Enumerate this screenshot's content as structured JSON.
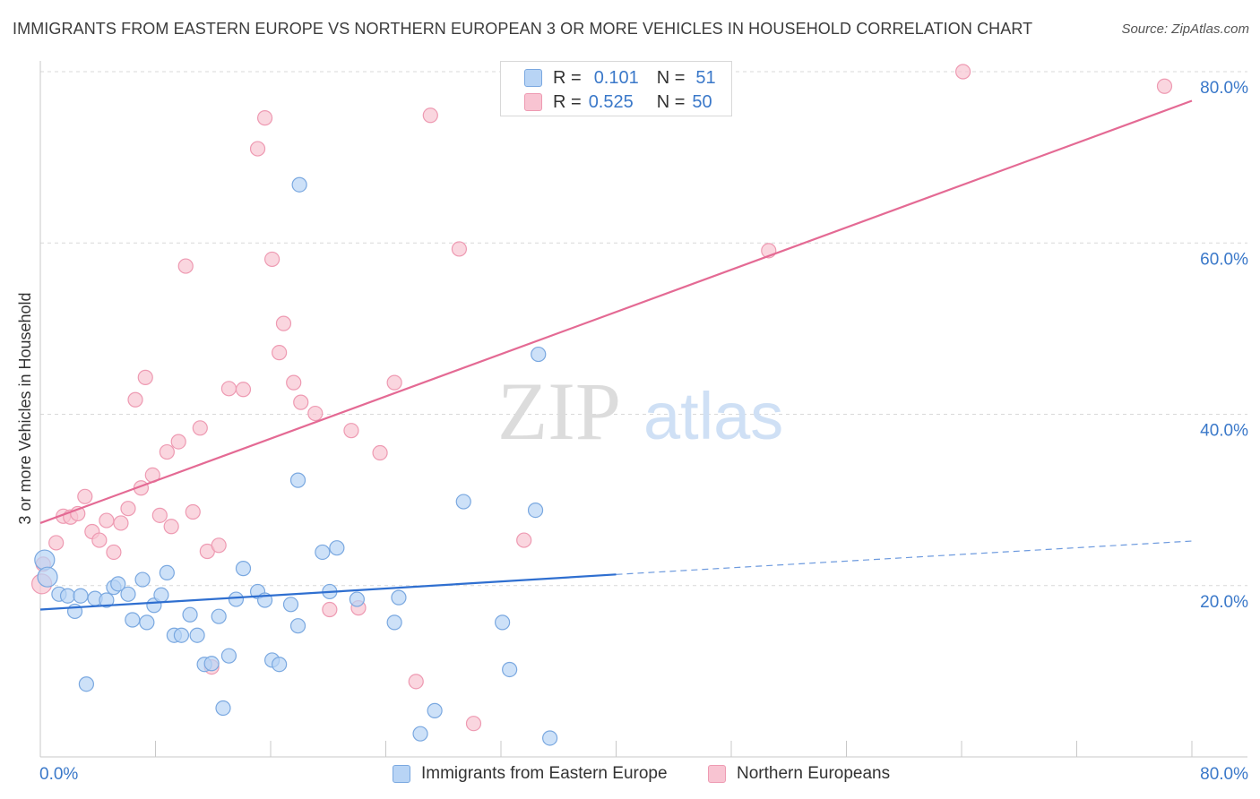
{
  "header": {
    "title": "IMMIGRANTS FROM EASTERN EUROPE VS NORTHERN EUROPEAN 3 OR MORE VEHICLES IN HOUSEHOLD CORRELATION CHART",
    "source": "Source: ZipAtlas.com"
  },
  "watermark": {
    "zip": "ZIP",
    "atlas": "atlas"
  },
  "legend": {
    "rows": [
      {
        "r_label": "R =",
        "r_value": "0.101",
        "n_label": "N =",
        "n_value": "51"
      },
      {
        "r_label": "R =",
        "r_value": "0.525",
        "n_label": "N =",
        "n_value": "50"
      }
    ]
  },
  "bottom_legend": {
    "series1": "Immigrants from Eastern Europe",
    "series2": "Northern Europeans"
  },
  "colors": {
    "blue_fill": "#b8d4f5",
    "blue_stroke": "#7aa8e0",
    "blue_line": "#2f6fd0",
    "pink_fill": "#f8c4d2",
    "pink_stroke": "#ee9ab2",
    "pink_line": "#e46a94",
    "tick_label": "#3a78c9",
    "grid": "#d9d9d9"
  },
  "chart_data": {
    "type": "scatter",
    "title": "IMMIGRANTS FROM EASTERN EUROPE VS NORTHERN EUROPEAN 3 OR MORE VEHICLES IN HOUSEHOLD CORRELATION CHART",
    "xlabel": "",
    "ylabel": "3 or more Vehicles in Household",
    "xlim": [
      0,
      80
    ],
    "ylim": [
      0,
      80
    ],
    "x_tick_labels": [
      "0.0%",
      "80.0%"
    ],
    "y_ticks": [
      20,
      40,
      60,
      80
    ],
    "y_tick_labels": [
      "20.0%",
      "40.0%",
      "60.0%",
      "80.0%"
    ],
    "grid": "horizontal dashed",
    "legend_position": "top-center",
    "series": [
      {
        "name": "Immigrants from Eastern Europe",
        "color": "#b8d4f5",
        "R": 0.101,
        "N": 51,
        "trend": {
          "x": [
            0,
            40
          ],
          "y": [
            17.2,
            21.3
          ],
          "dashed_extension": {
            "x": [
              40,
              80
            ],
            "y": [
              21.3,
              25.2
            ]
          }
        },
        "points": [
          [
            0.3,
            23.0
          ],
          [
            0.5,
            21.0
          ],
          [
            1.3,
            19.0
          ],
          [
            1.9,
            18.8
          ],
          [
            2.4,
            17.0
          ],
          [
            2.8,
            18.8
          ],
          [
            3.2,
            8.5
          ],
          [
            3.8,
            18.5
          ],
          [
            4.6,
            18.3
          ],
          [
            5.1,
            19.8
          ],
          [
            5.4,
            20.2
          ],
          [
            6.1,
            19.0
          ],
          [
            6.4,
            16.0
          ],
          [
            7.1,
            20.7
          ],
          [
            7.4,
            15.7
          ],
          [
            7.9,
            17.7
          ],
          [
            8.4,
            18.9
          ],
          [
            8.8,
            21.5
          ],
          [
            9.3,
            14.2
          ],
          [
            9.8,
            14.2
          ],
          [
            10.4,
            16.6
          ],
          [
            10.9,
            14.2
          ],
          [
            11.4,
            10.8
          ],
          [
            11.9,
            10.9
          ],
          [
            12.4,
            16.4
          ],
          [
            12.7,
            5.7
          ],
          [
            13.1,
            11.8
          ],
          [
            13.6,
            18.4
          ],
          [
            14.1,
            22.0
          ],
          [
            15.1,
            19.3
          ],
          [
            15.6,
            18.3
          ],
          [
            16.1,
            11.3
          ],
          [
            16.6,
            10.8
          ],
          [
            17.4,
            17.8
          ],
          [
            17.9,
            15.3
          ],
          [
            18.0,
            66.8
          ],
          [
            17.9,
            32.3
          ],
          [
            19.6,
            23.9
          ],
          [
            20.6,
            24.4
          ],
          [
            20.1,
            19.3
          ],
          [
            22.0,
            18.4
          ],
          [
            24.6,
            15.7
          ],
          [
            24.9,
            18.6
          ],
          [
            26.4,
            2.7
          ],
          [
            27.4,
            5.4
          ],
          [
            29.4,
            29.8
          ],
          [
            32.1,
            15.7
          ],
          [
            32.6,
            10.2
          ],
          [
            34.4,
            28.8
          ],
          [
            34.6,
            47.0
          ],
          [
            35.4,
            2.2
          ]
        ]
      },
      {
        "name": "Northern Europeans",
        "color": "#f8c4d2",
        "R": 0.525,
        "N": 50,
        "trend": {
          "x": [
            0,
            80
          ],
          "y": [
            27.3,
            76.6
          ]
        },
        "points": [
          [
            0.2,
            22.5
          ],
          [
            1.1,
            25.0
          ],
          [
            1.6,
            28.1
          ],
          [
            2.1,
            28.0
          ],
          [
            2.6,
            28.4
          ],
          [
            3.1,
            30.4
          ],
          [
            3.6,
            26.3
          ],
          [
            4.1,
            25.3
          ],
          [
            4.6,
            27.6
          ],
          [
            5.1,
            23.9
          ],
          [
            5.6,
            27.3
          ],
          [
            6.1,
            29.0
          ],
          [
            6.6,
            41.7
          ],
          [
            7.0,
            31.4
          ],
          [
            7.3,
            44.3
          ],
          [
            7.8,
            32.9
          ],
          [
            8.3,
            28.2
          ],
          [
            8.8,
            35.6
          ],
          [
            9.1,
            26.9
          ],
          [
            9.6,
            36.8
          ],
          [
            10.1,
            57.3
          ],
          [
            10.6,
            28.6
          ],
          [
            11.1,
            38.4
          ],
          [
            11.6,
            24.0
          ],
          [
            11.9,
            10.5
          ],
          [
            12.4,
            24.7
          ],
          [
            13.1,
            43.0
          ],
          [
            14.1,
            42.9
          ],
          [
            15.1,
            71.0
          ],
          [
            15.6,
            74.6
          ],
          [
            16.1,
            58.1
          ],
          [
            16.6,
            47.2
          ],
          [
            16.9,
            50.6
          ],
          [
            17.6,
            43.7
          ],
          [
            18.1,
            41.4
          ],
          [
            19.1,
            40.1
          ],
          [
            20.1,
            17.2
          ],
          [
            21.6,
            38.1
          ],
          [
            22.1,
            17.4
          ],
          [
            23.6,
            35.5
          ],
          [
            24.6,
            43.7
          ],
          [
            26.1,
            8.8
          ],
          [
            27.1,
            74.9
          ],
          [
            29.1,
            59.3
          ],
          [
            30.1,
            3.9
          ],
          [
            33.6,
            25.3
          ],
          [
            50.6,
            59.1
          ],
          [
            64.1,
            80.0
          ],
          [
            78.1,
            78.3
          ],
          [
            0.1,
            20.2
          ]
        ]
      }
    ]
  }
}
